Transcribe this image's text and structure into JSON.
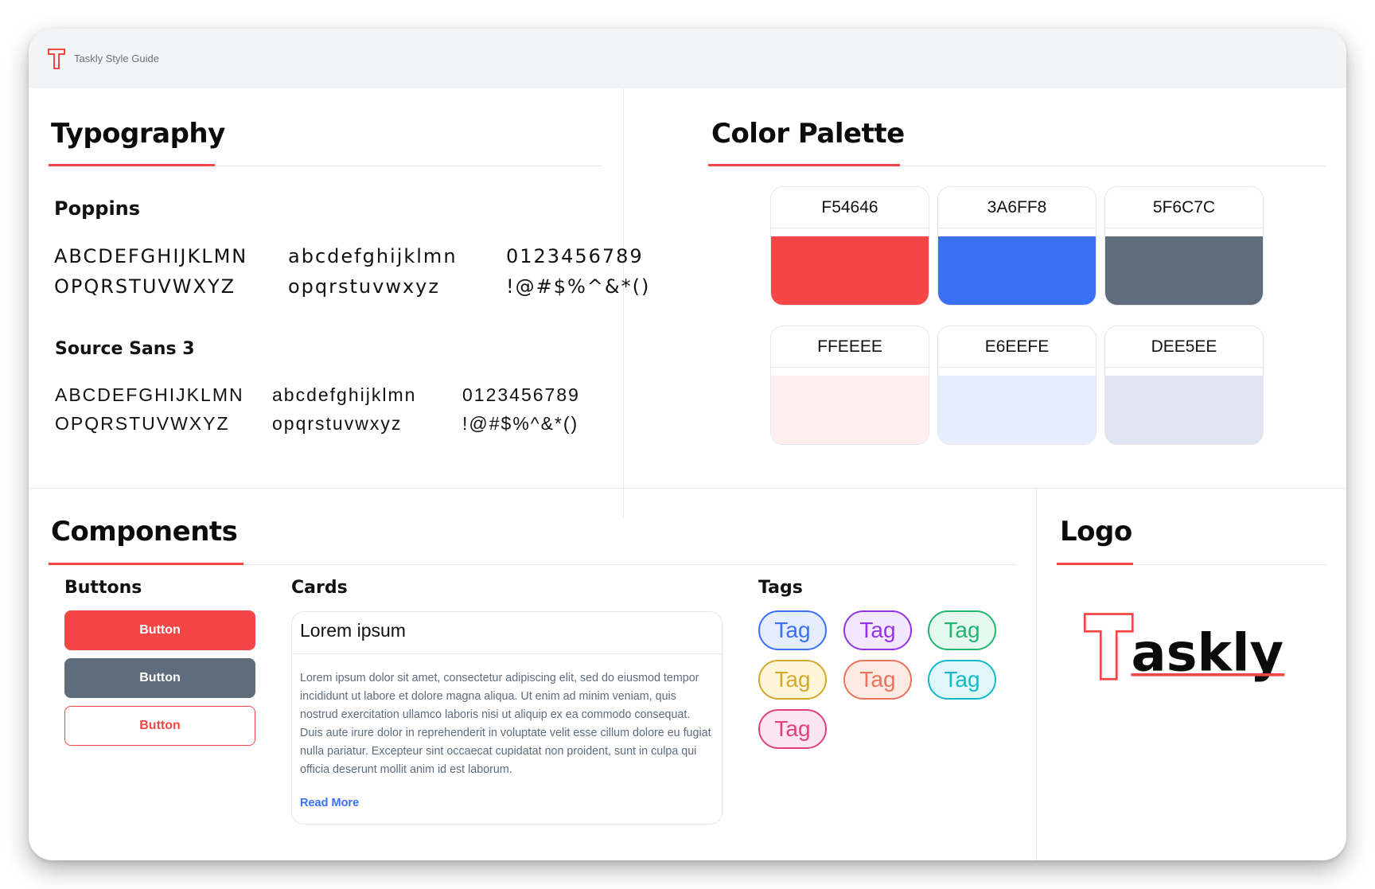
{
  "window": {
    "title": "Taskly Style Guide"
  },
  "typography": {
    "title": "Typography",
    "fonts": [
      {
        "name": "Poppins",
        "uppercase": "ABCDEFGHIJKLMN\nOPQRSTUVWXYZ",
        "lowercase": "abcdefghijklmn\nopqrstuvwxyz",
        "numbers": "0123456789\n!@#$%^&*()"
      },
      {
        "name": "Source Sans 3",
        "uppercase": "ABCDEFGHIJKLMN\nOPQRSTUVWXYZ",
        "lowercase": "abcdefghijklmn\nopqrstuvwxyz",
        "numbers": "0123456789\n!@#$%^&*()"
      }
    ]
  },
  "palette": {
    "title": "Color Palette",
    "colors": [
      {
        "hex": "F54646",
        "color": "#F54646"
      },
      {
        "hex": "3A6FF8",
        "color": "#3A6FF8"
      },
      {
        "hex": "5F6C7C",
        "color": "#5F6C7C"
      },
      {
        "hex": "FFEEEE",
        "color": "#FFEEEE"
      },
      {
        "hex": "E6EEFE",
        "color": "#E6EEFE"
      },
      {
        "hex": "DEE5EE",
        "color": "#DEE5EE"
      }
    ]
  },
  "components": {
    "title": "Components",
    "buttons": {
      "heading": "Buttons",
      "primary_label": "Button",
      "secondary_label": "Button",
      "outline_label": "Button"
    },
    "cards": {
      "heading": "Cards",
      "card_title": "Lorem ipsum",
      "card_body": "Lorem ipsum dolor sit amet, consectetur adipiscing elit, sed do eiusmod tempor incididunt ut labore et dolore magna aliqua. Ut enim ad minim veniam, quis nostrud exercitation ullamco laboris nisi ut aliquip ex ea commodo consequat. Duis aute irure dolor in reprehenderit in voluptate velit esse cillum dolore eu fugiat nulla pariatur. Excepteur sint occaecat cupidatat non proident, sunt in culpa qui officia deserunt mollit anim id est laborum.",
      "link": "Read More"
    },
    "tags": {
      "heading": "Tags",
      "items": [
        {
          "label": "Tag",
          "text": "#3A6FF8",
          "bg": "#E6EEFE",
          "border": "#3A6FF8"
        },
        {
          "label": "Tag",
          "text": "#9333EA",
          "bg": "#F3E8FF",
          "border": "#9333EA"
        },
        {
          "label": "Tag",
          "text": "#22B573",
          "bg": "#E6F9EE",
          "border": "#22B573"
        },
        {
          "label": "Tag",
          "text": "#D4A82A",
          "bg": "#FEF6D8",
          "border": "#D4A82A"
        },
        {
          "label": "Tag",
          "text": "#E8745B",
          "bg": "#FDEBE3",
          "border": "#E8745B"
        },
        {
          "label": "Tag",
          "text": "#14B8C8",
          "bg": "#E0F7FA",
          "border": "#14B8C8"
        },
        {
          "label": "Tag",
          "text": "#E2407A",
          "bg": "#FDE6EF",
          "border": "#E2407A"
        }
      ]
    }
  },
  "logo": {
    "title": "Logo",
    "wordmark_rest": "askly",
    "wordmark_initial": "T",
    "accent": "#F54646"
  }
}
